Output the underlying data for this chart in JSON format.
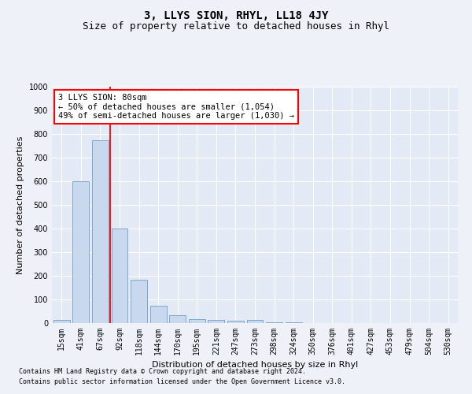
{
  "title": "3, LLYS SION, RHYL, LL18 4JY",
  "subtitle": "Size of property relative to detached houses in Rhyl",
  "xlabel": "Distribution of detached houses by size in Rhyl",
  "ylabel": "Number of detached properties",
  "footnote1": "Contains HM Land Registry data © Crown copyright and database right 2024.",
  "footnote2": "Contains public sector information licensed under the Open Government Licence v3.0.",
  "categories": [
    "15sqm",
    "41sqm",
    "67sqm",
    "92sqm",
    "118sqm",
    "144sqm",
    "170sqm",
    "195sqm",
    "221sqm",
    "247sqm",
    "273sqm",
    "298sqm",
    "324sqm",
    "350sqm",
    "376sqm",
    "401sqm",
    "427sqm",
    "453sqm",
    "479sqm",
    "504sqm",
    "530sqm"
  ],
  "bar_values": [
    13,
    600,
    775,
    400,
    185,
    75,
    35,
    18,
    13,
    10,
    13,
    5,
    5,
    0,
    0,
    0,
    0,
    0,
    0,
    0,
    0
  ],
  "bar_color": "#c9d9ed",
  "bar_edgecolor": "#7fa8ce",
  "redline_x": 2.5,
  "annotation_line1": "3 LLYS SION: 80sqm",
  "annotation_line2": "← 50% of detached houses are smaller (1,054)",
  "annotation_line3": "49% of semi-detached houses are larger (1,030) →",
  "ylim": [
    0,
    1000
  ],
  "yticks": [
    0,
    100,
    200,
    300,
    400,
    500,
    600,
    700,
    800,
    900,
    1000
  ],
  "background_color": "#eef2f8",
  "plot_bg_color": "#e4eaf5",
  "title_fontsize": 10,
  "subtitle_fontsize": 9,
  "axis_label_fontsize": 8,
  "tick_fontsize": 7,
  "annotation_fontsize": 7.5,
  "footnote_fontsize": 6
}
